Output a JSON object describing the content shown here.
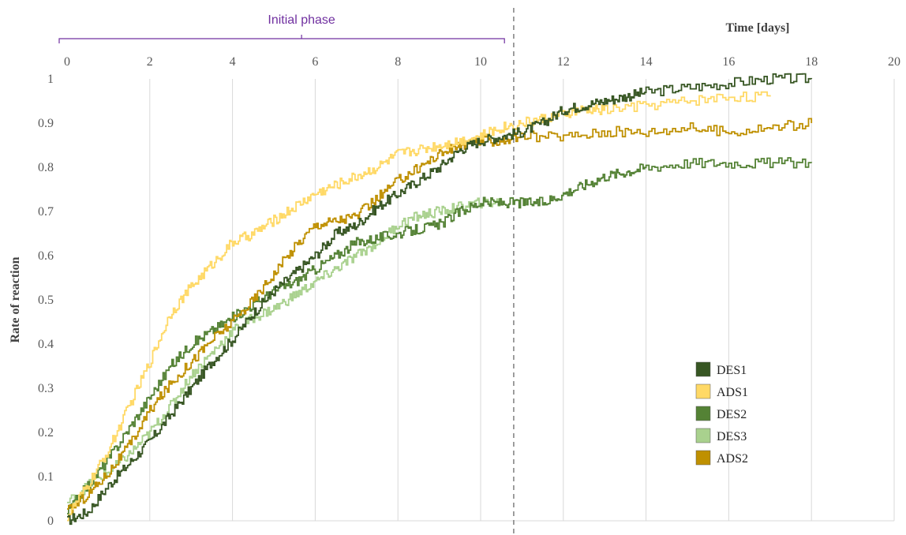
{
  "chart_data": {
    "type": "line",
    "title": "",
    "xlabel": "Time  [days]",
    "ylabel": "Rate of reaction",
    "xlim": [
      0,
      20
    ],
    "ylim": [
      0,
      1
    ],
    "x_ticks": [
      "0",
      "2",
      "4",
      "6",
      "8",
      "10",
      "12",
      "14",
      "16",
      "18",
      "20"
    ],
    "y_ticks": [
      "0",
      "0.1",
      "0.2",
      "0.3",
      "0.4",
      "0.5",
      "0.6",
      "0.7",
      "0.8",
      "0.9",
      "1"
    ],
    "x_axis_position": "top",
    "grid": "vertical",
    "legend_position": "bottom-right",
    "annotations": {
      "phase_label": "Initial phase",
      "phase_range": [
        0,
        10.5
      ],
      "divider_x": 10.8
    },
    "series": [
      {
        "name": "DES1",
        "color": "#375623",
        "x": [
          0,
          0.5,
          1,
          1.5,
          2,
          2.5,
          3,
          3.5,
          4,
          4.5,
          5,
          5.5,
          6,
          6.5,
          7,
          7.5,
          8,
          8.5,
          9,
          9.5,
          10,
          10.5,
          11,
          11.5,
          12,
          12.5,
          13,
          13.5,
          14,
          15,
          16,
          17,
          18
        ],
        "y": [
          0,
          0.02,
          0.08,
          0.13,
          0.18,
          0.24,
          0.3,
          0.36,
          0.41,
          0.47,
          0.52,
          0.56,
          0.6,
          0.65,
          0.67,
          0.71,
          0.74,
          0.77,
          0.8,
          0.84,
          0.86,
          0.87,
          0.88,
          0.9,
          0.93,
          0.94,
          0.95,
          0.96,
          0.97,
          0.98,
          0.99,
          1.0,
          1.0
        ]
      },
      {
        "name": "ADS1",
        "color": "#ffd966",
        "x": [
          0,
          0.5,
          1,
          1.5,
          2,
          2.5,
          3,
          3.5,
          4,
          4.5,
          5,
          5.5,
          6,
          6.5,
          7,
          7.5,
          8,
          8.5,
          9,
          9.5,
          10,
          10.5,
          11,
          11.5,
          12,
          12.5,
          13,
          14,
          15,
          16,
          17
        ],
        "y": [
          0.01,
          0.08,
          0.16,
          0.26,
          0.36,
          0.47,
          0.53,
          0.58,
          0.63,
          0.65,
          0.68,
          0.71,
          0.74,
          0.76,
          0.78,
          0.8,
          0.83,
          0.84,
          0.85,
          0.86,
          0.87,
          0.89,
          0.9,
          0.91,
          0.92,
          0.93,
          0.93,
          0.94,
          0.95,
          0.96,
          0.96
        ]
      },
      {
        "name": "DES2",
        "color": "#548235",
        "x": [
          0,
          0.5,
          1,
          1.5,
          2,
          2.5,
          3,
          3.5,
          4,
          4.5,
          5,
          5.5,
          6,
          6.5,
          7,
          7.5,
          8,
          8.5,
          9,
          9.5,
          10,
          10.5,
          11,
          11.5,
          12,
          12.5,
          13,
          13.5,
          14,
          15,
          16,
          17,
          18
        ],
        "y": [
          0.02,
          0.08,
          0.14,
          0.21,
          0.28,
          0.35,
          0.4,
          0.43,
          0.46,
          0.49,
          0.52,
          0.54,
          0.57,
          0.6,
          0.63,
          0.64,
          0.65,
          0.66,
          0.67,
          0.7,
          0.72,
          0.72,
          0.72,
          0.72,
          0.74,
          0.76,
          0.78,
          0.79,
          0.8,
          0.81,
          0.81,
          0.81,
          0.81
        ]
      },
      {
        "name": "DES3",
        "color": "#a9d18e",
        "x": [
          0,
          0.5,
          1,
          1.5,
          2,
          2.5,
          3,
          3.5,
          4,
          4.5,
          5,
          5.5,
          6,
          6.5,
          7,
          7.5,
          8,
          8.5,
          9,
          9.5,
          10,
          10.5
        ],
        "y": [
          0.04,
          0.08,
          0.11,
          0.15,
          0.2,
          0.26,
          0.33,
          0.38,
          0.43,
          0.46,
          0.48,
          0.51,
          0.54,
          0.57,
          0.6,
          0.63,
          0.67,
          0.69,
          0.7,
          0.71,
          0.72,
          0.72
        ]
      },
      {
        "name": "ADS2",
        "color": "#bf9000",
        "x": [
          0,
          0.5,
          1,
          1.5,
          2,
          2.5,
          3,
          3.5,
          4,
          4.5,
          5,
          5.5,
          6,
          6.5,
          7,
          7.5,
          8,
          8.5,
          9,
          9.5,
          10,
          10.5,
          11,
          12,
          13,
          14,
          15,
          16,
          17,
          18
        ],
        "y": [
          0.02,
          0.06,
          0.11,
          0.17,
          0.25,
          0.31,
          0.36,
          0.41,
          0.45,
          0.5,
          0.56,
          0.62,
          0.67,
          0.68,
          0.69,
          0.73,
          0.77,
          0.8,
          0.83,
          0.85,
          0.86,
          0.86,
          0.87,
          0.87,
          0.88,
          0.88,
          0.89,
          0.88,
          0.89,
          0.9
        ]
      }
    ]
  }
}
